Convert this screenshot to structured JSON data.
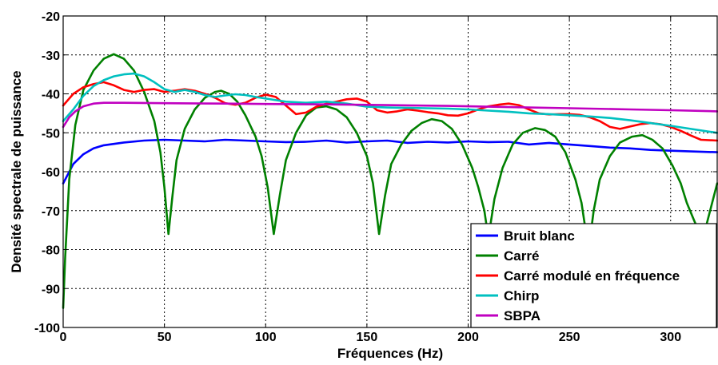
{
  "chart_data": {
    "type": "line",
    "title": "",
    "xlabel": "Fréquences (Hz)",
    "ylabel": "Densité spectrale de puissance",
    "xlim": [
      0,
      323
    ],
    "ylim": [
      -100,
      -20
    ],
    "xticks": [
      0,
      50,
      100,
      150,
      200,
      250,
      300
    ],
    "yticks": [
      -100,
      -90,
      -80,
      -70,
      -60,
      -50,
      -40,
      -30,
      -20
    ],
    "grid": true,
    "legend_position": "bottom-right",
    "series": [
      {
        "name": "Bruit blanc",
        "color": "#0000ff",
        "x": [
          0,
          5,
          10,
          15,
          20,
          30,
          40,
          50,
          60,
          70,
          80,
          90,
          100,
          110,
          120,
          130,
          140,
          150,
          160,
          170,
          180,
          190,
          200,
          210,
          220,
          230,
          240,
          250,
          260,
          270,
          280,
          290,
          300,
          310,
          323
        ],
        "y": [
          -63,
          -58,
          -55.5,
          -54,
          -53.2,
          -52.5,
          -52,
          -51.8,
          -52,
          -52.2,
          -51.8,
          -52,
          -52.2,
          -52.4,
          -52.3,
          -52,
          -52.5,
          -52.2,
          -52,
          -52.6,
          -52.3,
          -52.5,
          -52.2,
          -52.4,
          -52.3,
          -53,
          -52.6,
          -53,
          -53.4,
          -53.8,
          -54,
          -54.4,
          -54.6,
          -54.8,
          -55
        ]
      },
      {
        "name": "Carré",
        "color": "#008000",
        "x": [
          0,
          1,
          3,
          6,
          10,
          15,
          20,
          25,
          30,
          35,
          40,
          45,
          48,
          50,
          52,
          54,
          56,
          60,
          65,
          70,
          75,
          78,
          82,
          86,
          90,
          95,
          98,
          101,
          104,
          107,
          110,
          115,
          120,
          125,
          130,
          135,
          140,
          145,
          150,
          153,
          156,
          159,
          162,
          167,
          172,
          177,
          182,
          187,
          192,
          197,
          202,
          205,
          208,
          210,
          213,
          217,
          222,
          227,
          233,
          238,
          243,
          248,
          253,
          256,
          258,
          260,
          262,
          265,
          270,
          275,
          281,
          286,
          291,
          296,
          301,
          305,
          308,
          312,
          316,
          320,
          323
        ],
        "y": [
          -95,
          -82,
          -62,
          -48,
          -39,
          -34,
          -31,
          -29.8,
          -31,
          -34,
          -39.5,
          -47,
          -55,
          -64,
          -76,
          -66,
          -57,
          -49,
          -44,
          -41,
          -39.5,
          -39.2,
          -40,
          -42,
          -45.5,
          -51,
          -56,
          -64,
          -76,
          -66,
          -57,
          -50,
          -45.5,
          -43.5,
          -43.2,
          -44,
          -46,
          -50,
          -56,
          -63,
          -76,
          -66,
          -58,
          -53,
          -49.5,
          -47.5,
          -46.5,
          -47,
          -49,
          -53,
          -59,
          -64,
          -70,
          -77,
          -67,
          -59,
          -53,
          -50,
          -48.8,
          -49.3,
          -51,
          -55,
          -62,
          -68,
          -75,
          -78,
          -70,
          -62,
          -56,
          -52.5,
          -51,
          -50.6,
          -51.8,
          -54,
          -58.5,
          -63,
          -68,
          -73,
          -77,
          -69,
          -63
        ]
      },
      {
        "name": "Carré modulé en fréquence",
        "color": "#ff0000",
        "x": [
          0,
          5,
          10,
          15,
          20,
          25,
          30,
          35,
          40,
          45,
          50,
          55,
          60,
          65,
          70,
          75,
          80,
          85,
          90,
          95,
          100,
          105,
          110,
          115,
          120,
          125,
          130,
          135,
          140,
          145,
          150,
          155,
          160,
          165,
          170,
          175,
          180,
          185,
          190,
          195,
          200,
          205,
          210,
          215,
          220,
          225,
          230,
          235,
          240,
          245,
          250,
          255,
          260,
          265,
          270,
          275,
          280,
          285,
          290,
          295,
          300,
          305,
          310,
          315,
          323
        ],
        "y": [
          -43,
          -40,
          -38.3,
          -37.5,
          -37,
          -37.8,
          -39,
          -39.5,
          -39,
          -38.8,
          -39.5,
          -39.2,
          -38.8,
          -39.2,
          -40,
          -41,
          -42.4,
          -42.8,
          -42.3,
          -41,
          -40.2,
          -40.8,
          -43,
          -45.2,
          -44.8,
          -43.3,
          -42.5,
          -42,
          -41.4,
          -41.2,
          -42,
          -44.2,
          -44.8,
          -44.5,
          -44,
          -44.3,
          -44.7,
          -45,
          -45.5,
          -45.6,
          -45,
          -44,
          -43.2,
          -42.8,
          -42.5,
          -42.9,
          -44,
          -45,
          -45.3,
          -45.2,
          -45.2,
          -45.4,
          -46,
          -47,
          -48.5,
          -49,
          -48.4,
          -47.8,
          -47.5,
          -47.8,
          -48.5,
          -49.5,
          -50.7,
          -51.8,
          -52
        ]
      },
      {
        "name": "Chirp",
        "color": "#00c0c0",
        "x": [
          0,
          5,
          10,
          15,
          20,
          25,
          30,
          35,
          40,
          45,
          50,
          55,
          60,
          65,
          70,
          75,
          80,
          85,
          90,
          95,
          100,
          110,
          120,
          130,
          140,
          150,
          160,
          170,
          180,
          190,
          200,
          210,
          220,
          230,
          240,
          250,
          260,
          270,
          280,
          290,
          300,
          310,
          323
        ],
        "y": [
          -47,
          -44,
          -40.5,
          -38,
          -36.5,
          -35.5,
          -35,
          -34.8,
          -35.5,
          -37,
          -38.8,
          -39.5,
          -39,
          -39.5,
          -40.3,
          -40.8,
          -40.4,
          -40.1,
          -40.3,
          -40.8,
          -41.2,
          -42,
          -42.3,
          -42,
          -42.5,
          -43.3,
          -43.5,
          -43.6,
          -43.7,
          -43.8,
          -44,
          -44.3,
          -44.6,
          -45,
          -45.2,
          -45.5,
          -45.8,
          -46.2,
          -46.8,
          -47.5,
          -48.2,
          -49,
          -50
        ]
      },
      {
        "name": "SBPA",
        "color": "#c000c0",
        "x": [
          0,
          3,
          6,
          10,
          15,
          20,
          30,
          50,
          80,
          100,
          130,
          160,
          190,
          220,
          250,
          280,
          300,
          323
        ],
        "y": [
          -48.5,
          -46,
          -44.5,
          -43.2,
          -42.5,
          -42.3,
          -42.3,
          -42.4,
          -42.5,
          -42.6,
          -42.7,
          -42.9,
          -43.1,
          -43.4,
          -43.7,
          -44,
          -44.2,
          -44.5
        ]
      }
    ]
  }
}
